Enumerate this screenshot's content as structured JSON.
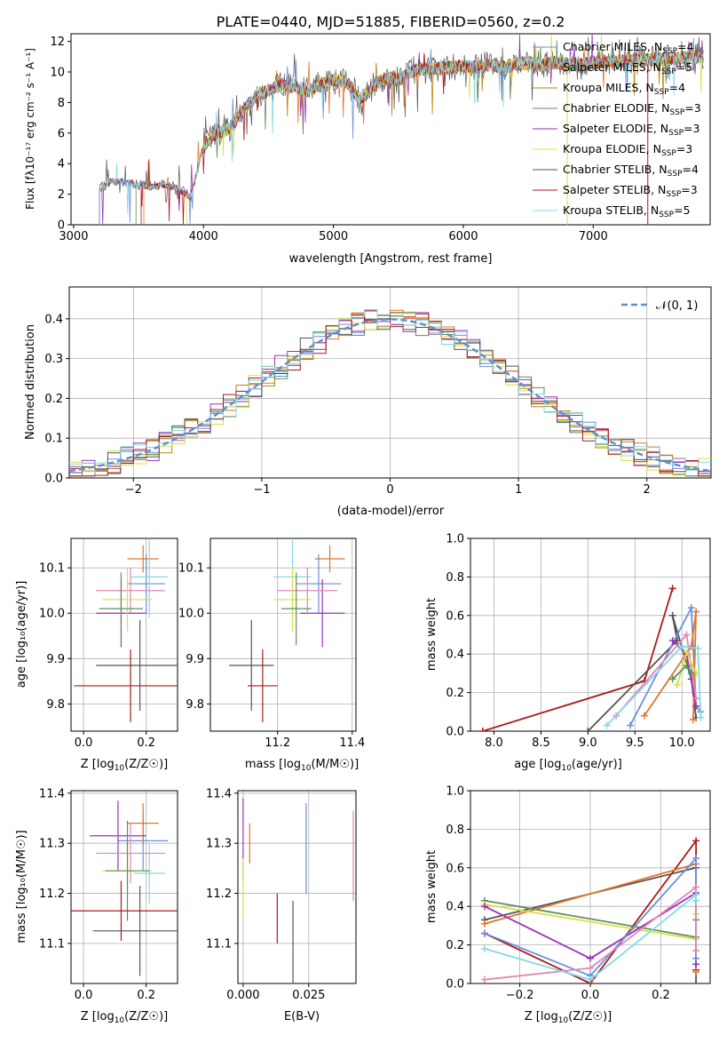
{
  "figure": {
    "title": "PLATE=0440, MJD=51885, FIBERID=0560, z=0.2"
  },
  "colors": [
    "#6a8fdc",
    "#e0762a",
    "#b8860b",
    "#5e8f5e",
    "#9a32b8",
    "#d8e040",
    "#555555",
    "#b01818",
    "#84d8e6"
  ],
  "chart_data": [
    {
      "id": "spectrum",
      "type": "line",
      "xlabel": "wavelength [Angstrom, rest frame]",
      "ylabel": "Flux [fλ10⁻¹⁷ erg cm⁻² s⁻¹ A⁻¹]",
      "xlim": [
        2980,
        7900
      ],
      "ylim": [
        0,
        12.5
      ],
      "xticks": [
        3000,
        4000,
        5000,
        6000,
        7000
      ],
      "yticks": [
        0,
        2,
        4,
        6,
        8,
        10,
        12
      ],
      "grid": false,
      "legend_position": "right",
      "observed_envelope": {
        "x": [
          3200,
          3300,
          3400,
          3500,
          3600,
          3700,
          3800,
          3900,
          4000,
          4100,
          4200,
          4300,
          4400,
          4500,
          4600,
          4700,
          4800,
          4900,
          5000,
          5100,
          5200,
          5300,
          5400,
          5500,
          5600,
          5700,
          5800,
          5900,
          6000,
          6100,
          6200,
          6300,
          6400,
          6500,
          6600,
          6700,
          6800,
          6900,
          7000,
          7100,
          7200,
          7300,
          7400,
          7500,
          7600,
          7700,
          7800
        ],
        "y": [
          2.3,
          2.9,
          2.8,
          2.6,
          2.5,
          2.6,
          2.4,
          1.8,
          5.2,
          6.0,
          6.3,
          7.4,
          8.4,
          8.8,
          9.2,
          9.1,
          8.8,
          9.2,
          9.5,
          9.4,
          8.2,
          9.0,
          9.6,
          9.5,
          10.0,
          10.2,
          10.2,
          10.3,
          10.4,
          10.3,
          10.5,
          10.3,
          10.5,
          10.6,
          10.5,
          10.6,
          10.5,
          10.5,
          10.6,
          10.7,
          10.7,
          10.8,
          10.8,
          10.8,
          10.9,
          10.9,
          11.0
        ]
      },
      "series": [
        {
          "name": "Chabrier MILES, N_SSP=4",
          "label_main": "Chabrier MILES, N",
          "label_sub": "SSP",
          "label_tail": "=4",
          "color_index": 0
        },
        {
          "name": "Salpeter MILES, N_SSP=5",
          "label_main": "Salpeter MILES, N",
          "label_sub": "SSP",
          "label_tail": "=5",
          "color_index": 1
        },
        {
          "name": "Kroupa MILES, N_SSP=4",
          "label_main": "Kroupa MILES, N",
          "label_sub": "SSP",
          "label_tail": "=4",
          "color_index": 2
        },
        {
          "name": "Chabrier ELODIE, N_SSP=3",
          "label_main": "Chabrier ELODIE, N",
          "label_sub": "SSP",
          "label_tail": "=3",
          "color_index": 3
        },
        {
          "name": "Salpeter ELODIE, N_SSP=3",
          "label_main": "Salpeter ELODIE, N",
          "label_sub": "SSP",
          "label_tail": "=3",
          "color_index": 4
        },
        {
          "name": "Kroupa ELODIE, N_SSP=3",
          "label_main": "Kroupa ELODIE, N",
          "label_sub": "SSP",
          "label_tail": "=3",
          "color_index": 5
        },
        {
          "name": "Chabrier STELIB, N_SSP=4",
          "label_main": "Chabrier STELIB, N",
          "label_sub": "SSP",
          "label_tail": "=4",
          "color_index": 6
        },
        {
          "name": "Salpeter STELIB, N_SSP=3",
          "label_main": "Salpeter STELIB, N",
          "label_sub": "SSP",
          "label_tail": "=3",
          "color_index": 7
        },
        {
          "name": "Kroupa STELIB, N_SSP=5",
          "label_main": "Kroupa STELIB, N",
          "label_sub": "SSP",
          "label_tail": "=5",
          "color_index": 8
        }
      ]
    },
    {
      "id": "residuals",
      "type": "histogram",
      "xlabel": "(data-model)/error",
      "ylabel": "Normed distribution",
      "xlim": [
        -2.5,
        2.5
      ],
      "ylim": [
        0,
        0.48
      ],
      "xticks": [
        -2,
        -1,
        0,
        1,
        2
      ],
      "xtick_labels": [
        "−2",
        "−1",
        "0",
        "1",
        "2"
      ],
      "yticks": [
        0,
        0.1,
        0.2,
        0.3,
        0.4
      ],
      "ytick_labels": [
        "0.0",
        "0.1",
        "0.2",
        "0.3",
        "0.4"
      ],
      "grid": true,
      "legend_position": "top-right",
      "legend_label": "𝒩(0, 1)",
      "bin_width": 0.1,
      "reference_curve": "standard normal, dashed"
    },
    {
      "id": "age_vs_Z",
      "type": "errorbar",
      "xlabel_main": "Z [log",
      "xlabel_sub": "10",
      "xlabel_tail": "(Z/Z☉)]",
      "ylabel": "age  [log₁₀(age/yr)]",
      "xlim": [
        -0.04,
        0.3
      ],
      "ylim": [
        9.74,
        10.165
      ],
      "xticks": [
        0.0,
        0.2
      ],
      "xtick_labels": [
        "0.0",
        "0.2"
      ],
      "yticks": [
        9.8,
        9.9,
        10.0,
        10.1
      ],
      "ytick_labels": [
        "9.8",
        "9.9",
        "10.0",
        "10.1"
      ],
      "grid": true,
      "points": [
        {
          "c": 0,
          "x": 0.2,
          "xerr": 0.06,
          "y": 10.065,
          "yerr": 0.065
        },
        {
          "c": 1,
          "x": 0.19,
          "xerr": 0.05,
          "y": 10.12,
          "yerr": 0.03
        },
        {
          "c": 4,
          "x": 0.12,
          "xerr": 0.08,
          "y": 10.0,
          "yerr": 0.075
        },
        {
          "c": 8,
          "x": 0.21,
          "xerr": 0.06,
          "y": 10.08,
          "yerr": 0.09
        },
        {
          "c": 9,
          "x": 0.15,
          "xerr": 0.11,
          "y": 10.05,
          "yerr": 0.05
        },
        {
          "c": 5,
          "x": 0.14,
          "xerr": 0.08,
          "y": 10.03,
          "yerr": 0.07
        },
        {
          "c": 3,
          "x": 0.12,
          "xerr": 0.07,
          "y": 10.01,
          "yerr": 0.08
        },
        {
          "c": 6,
          "x": 0.18,
          "xerr": 0.14,
          "y": 9.885,
          "yerr": 0.1
        },
        {
          "c": 7,
          "x": 0.15,
          "xerr": 0.18,
          "y": 9.84,
          "yerr": 0.08
        }
      ]
    },
    {
      "id": "age_vs_mass",
      "type": "errorbar",
      "xlabel_main": "mass [log",
      "xlabel_sub": "10",
      "xlabel_tail": "(M/M☉)]",
      "xlim": [
        11.02,
        11.41
      ],
      "ylim": [
        9.74,
        10.165
      ],
      "xticks": [
        11.2,
        11.4
      ],
      "xtick_labels": [
        "11.2",
        "11.4"
      ],
      "yticks": [
        9.8,
        9.9,
        10.0,
        10.1
      ],
      "ytick_labels": [
        "9.8",
        "9.9",
        "10.0",
        "10.1"
      ],
      "grid": true,
      "points": [
        {
          "c": 0,
          "x": 11.31,
          "xerr": 0.06,
          "y": 10.065,
          "yerr": 0.065
        },
        {
          "c": 1,
          "x": 11.34,
          "xerr": 0.04,
          "y": 10.12,
          "yerr": 0.03
        },
        {
          "c": 4,
          "x": 11.32,
          "xerr": 0.06,
          "y": 10.0,
          "yerr": 0.075
        },
        {
          "c": 8,
          "x": 11.24,
          "xerr": 0.05,
          "y": 10.08,
          "yerr": 0.09
        },
        {
          "c": 9,
          "x": 11.28,
          "xerr": 0.08,
          "y": 10.05,
          "yerr": 0.05
        },
        {
          "c": 5,
          "x": 11.24,
          "xerr": 0.05,
          "y": 10.03,
          "yerr": 0.07
        },
        {
          "c": 3,
          "x": 11.25,
          "xerr": 0.04,
          "y": 10.01,
          "yerr": 0.08
        },
        {
          "c": 6,
          "x": 11.13,
          "xerr": 0.06,
          "y": 9.885,
          "yerr": 0.1
        },
        {
          "c": 7,
          "x": 11.16,
          "xerr": 0.04,
          "y": 9.84,
          "yerr": 0.08
        }
      ]
    },
    {
      "id": "weight_vs_age",
      "type": "line",
      "xlabel_main": "age  [log",
      "xlabel_sub": "10",
      "xlabel_tail": "(age/yr)]",
      "ylabel": "mass weight",
      "xlim": [
        7.75,
        10.3
      ],
      "ylim": [
        0,
        1.0
      ],
      "xticks": [
        8.0,
        8.5,
        9.0,
        9.5,
        10.0
      ],
      "xtick_labels": [
        "8.0",
        "8.5",
        "9.0",
        "9.5",
        "10.0"
      ],
      "yticks": [
        0,
        0.2,
        0.4,
        0.6,
        0.8,
        1.0
      ],
      "ytick_labels": [
        "0.0",
        "0.2",
        "0.4",
        "0.6",
        "0.8",
        "1.0"
      ],
      "grid": true,
      "series": [
        {
          "c": 7,
          "x": [
            7.88,
            9.6,
            9.9
          ],
          "y": [
            0.0,
            0.26,
            0.74
          ]
        },
        {
          "c": 6,
          "x": [
            9.0,
            9.95,
            9.9,
            10.1,
            10.15
          ],
          "y": [
            0.0,
            0.47,
            0.6,
            0.27,
            0.07
          ]
        },
        {
          "c": 0,
          "x": [
            9.45,
            10.1,
            10.15,
            10.2
          ],
          "y": [
            0.03,
            0.64,
            0.13,
            0.1
          ]
        },
        {
          "c": 1,
          "x": [
            9.6,
            10.1,
            10.15,
            10.12
          ],
          "y": [
            0.08,
            0.44,
            0.62,
            0.06
          ]
        },
        {
          "c": 4,
          "x": [
            9.9,
            10.05,
            10.15
          ],
          "y": [
            0.47,
            0.4,
            0.13
          ]
        },
        {
          "c": 9,
          "x": [
            9.3,
            10.05,
            10.15
          ],
          "y": [
            0.08,
            0.5,
            0.17
          ]
        },
        {
          "c": 5,
          "x": [
            9.95,
            10.05,
            10.15
          ],
          "y": [
            0.24,
            0.41,
            0.3
          ]
        },
        {
          "c": 8,
          "x": [
            9.2,
            10.0,
            10.17,
            10.2
          ],
          "y": [
            0.03,
            0.44,
            0.43,
            0.07
          ]
        },
        {
          "c": 3,
          "x": [
            9.9,
            10.05,
            10.1
          ],
          "y": [
            0.27,
            0.34,
            0.3
          ]
        }
      ]
    },
    {
      "id": "mass_vs_Z",
      "type": "errorbar",
      "xlabel_main": "Z [log",
      "xlabel_sub": "10",
      "xlabel_tail": "(Z/Z☉)]",
      "ylabel": "mass [log₁₀(M/M☉)]",
      "xlim": [
        -0.04,
        0.3
      ],
      "ylim": [
        11.02,
        11.405
      ],
      "xticks": [
        0.0,
        0.2
      ],
      "xtick_labels": [
        "0.0",
        "0.2"
      ],
      "yticks": [
        11.1,
        11.2,
        11.3,
        11.4
      ],
      "ytick_labels": [
        "11.1",
        "11.2",
        "11.3",
        "11.4"
      ],
      "grid": true,
      "points": [
        {
          "c": 0,
          "x": 0.19,
          "xerr": 0.08,
          "y": 11.305,
          "yerr": 0.06
        },
        {
          "c": 1,
          "x": 0.19,
          "xerr": 0.05,
          "y": 11.34,
          "yerr": 0.04
        },
        {
          "c": 4,
          "x": 0.11,
          "xerr": 0.09,
          "y": 11.315,
          "yerr": 0.07
        },
        {
          "c": 8,
          "x": 0.21,
          "xerr": 0.05,
          "y": 11.24,
          "yerr": 0.06
        },
        {
          "c": 9,
          "x": 0.15,
          "xerr": 0.11,
          "y": 11.28,
          "yerr": 0.06
        },
        {
          "c": 5,
          "x": 0.14,
          "xerr": 0.08,
          "y": 11.245,
          "yerr": 0.06
        },
        {
          "c": 3,
          "x": 0.14,
          "xerr": 0.07,
          "y": 11.245,
          "yerr": 0.1
        },
        {
          "c": 6,
          "x": 0.18,
          "xerr": 0.15,
          "y": 11.125,
          "yerr": 0.09
        },
        {
          "c": 7,
          "x": 0.12,
          "xerr": 0.18,
          "y": 11.165,
          "yerr": 0.06
        }
      ]
    },
    {
      "id": "mass_vs_ebv",
      "type": "errorbar",
      "xlabel": "E(B-V)",
      "xlim": [
        -0.002,
        0.043
      ],
      "ylim": [
        11.02,
        11.405
      ],
      "xticks": [
        0.0,
        0.025
      ],
      "xtick_labels": [
        "0.000",
        "0.025"
      ],
      "yticks": [
        11.1,
        11.2,
        11.3,
        11.4
      ],
      "ytick_labels": [
        "11.1",
        "11.2",
        "11.3",
        "11.4"
      ],
      "grid": true,
      "points": [
        {
          "c": 4,
          "x": 0.0,
          "xerr": 0,
          "y": 11.31,
          "yerr": 0.08
        },
        {
          "c": 5,
          "x": 0.0,
          "xerr": 0,
          "y": 11.21,
          "yerr": 0.06
        },
        {
          "c": 1,
          "x": 0.0025,
          "xerr": 0,
          "y": 11.3,
          "yerr": 0.04
        },
        {
          "c": 7,
          "x": 0.013,
          "xerr": 0,
          "y": 11.15,
          "yerr": 0.05
        },
        {
          "c": 6,
          "x": 0.019,
          "xerr": 0,
          "y": 11.1,
          "yerr": 0.085
        },
        {
          "c": 0,
          "x": 0.024,
          "xerr": 0,
          "y": 11.29,
          "yerr": 0.09
        },
        {
          "c": 9,
          "x": 0.042,
          "xerr": 0,
          "y": 11.275,
          "yerr": 0.09
        }
      ]
    },
    {
      "id": "weight_vs_Z",
      "type": "line",
      "xlabel_main": "Z [log",
      "xlabel_sub": "10",
      "xlabel_tail": "(Z/Z☉)]",
      "ylabel": "mass weight",
      "xlim": [
        -0.34,
        0.34
      ],
      "ylim": [
        0,
        1.0
      ],
      "xticks": [
        -0.2,
        0.0,
        0.2
      ],
      "xtick_labels": [
        "−0.2",
        "0.0",
        "0.2"
      ],
      "yticks": [
        0,
        0.2,
        0.4,
        0.6,
        0.8,
        1.0
      ],
      "ytick_labels": [
        "0.0",
        "0.2",
        "0.4",
        "0.6",
        "0.8",
        "1.0"
      ],
      "grid": true,
      "series": [
        {
          "c": 7,
          "x": [
            -0.3,
            0.0,
            0.3,
            0.3
          ],
          "y": [
            0.26,
            0.0,
            0.74,
            0.07
          ]
        },
        {
          "c": 6,
          "x": [
            -0.3,
            0.3,
            0.3
          ],
          "y": [
            0.33,
            0.6,
            0.0
          ]
        },
        {
          "c": 1,
          "x": [
            -0.3,
            0.3,
            0.3
          ],
          "y": [
            0.31,
            0.62,
            0.06
          ]
        },
        {
          "c": 3,
          "x": [
            -0.3,
            0.3,
            0.3
          ],
          "y": [
            0.43,
            0.24,
            0.33
          ]
        },
        {
          "c": 5,
          "x": [
            -0.3,
            0.3,
            0.3
          ],
          "y": [
            0.41,
            0.23,
            0.36
          ]
        },
        {
          "c": 4,
          "x": [
            -0.3,
            0.0,
            0.3,
            0.3
          ],
          "y": [
            0.4,
            0.13,
            0.47,
            0.1
          ]
        },
        {
          "c": 0,
          "x": [
            -0.3,
            0.0,
            0.3,
            0.3
          ],
          "y": [
            0.26,
            0.04,
            0.65,
            0.13
          ]
        },
        {
          "c": 9,
          "x": [
            -0.3,
            0.0,
            0.3,
            0.3
          ],
          "y": [
            0.02,
            0.08,
            0.5,
            0.17
          ]
        },
        {
          "c": 8,
          "x": [
            -0.3,
            0.0,
            0.3,
            0.3
          ],
          "y": [
            0.18,
            0.02,
            0.46,
            0.43
          ]
        }
      ]
    }
  ]
}
